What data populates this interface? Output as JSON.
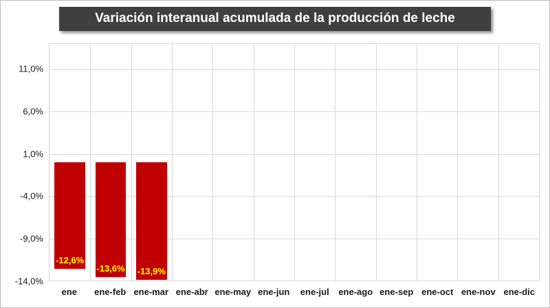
{
  "chart_data": {
    "type": "bar",
    "title": "Variación interanual acumulada de la producción de leche",
    "categories": [
      "ene",
      "ene-feb",
      "ene-mar",
      "ene-abr",
      "ene-may",
      "ene-jun",
      "ene-jul",
      "ene-ago",
      "ene-sep",
      "ene-oct",
      "ene-nov",
      "ene-dic"
    ],
    "values": [
      -12.6,
      -13.6,
      -13.9,
      null,
      null,
      null,
      null,
      null,
      null,
      null,
      null,
      null
    ],
    "value_labels": [
      "-12,6%",
      "-13,6%",
      "-13,9%",
      "",
      "",
      "",
      "",
      "",
      "",
      "",
      "",
      ""
    ],
    "ylim": [
      -14,
      14
    ],
    "yticks": [
      11,
      6,
      1,
      -4,
      -9,
      -14
    ],
    "ytick_labels": [
      "11,0%",
      "6,0%",
      "1,0%",
      "-4,0%",
      "-9,0%",
      "-14,0%"
    ],
    "xlabel": "",
    "ylabel": "",
    "grid": true,
    "legend": "none",
    "colors": {
      "bar": "#C00000",
      "data_label": "#FFFF00",
      "gridline": "#d9d9d9",
      "title_bg": "#3f3f3f",
      "title_text": "#ffffff",
      "axis_text": "#1a1a1a"
    }
  }
}
